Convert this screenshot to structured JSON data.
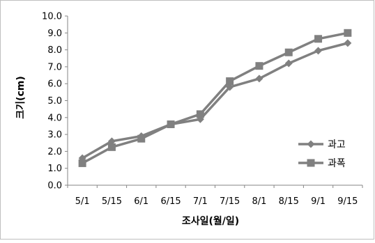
{
  "chart_data": {
    "type": "line",
    "categories": [
      "5/1",
      "5/15",
      "6/1",
      "6/15",
      "7/1",
      "7/15",
      "8/1",
      "8/15",
      "9/1",
      "9/15"
    ],
    "series": [
      {
        "name": "과고",
        "marker": "diamond",
        "color": "#808080",
        "values": [
          1.6,
          2.6,
          2.9,
          3.6,
          3.9,
          5.8,
          6.3,
          7.2,
          7.95,
          8.4
        ]
      },
      {
        "name": "과폭",
        "marker": "square",
        "color": "#808080",
        "values": [
          1.3,
          2.25,
          2.75,
          3.6,
          4.2,
          6.15,
          7.05,
          7.85,
          8.65,
          9.0
        ]
      }
    ],
    "ylim": [
      0,
      10
    ],
    "yticks": [
      "0.0",
      "1.0",
      "2.0",
      "3.0",
      "4.0",
      "5.0",
      "6.0",
      "7.0",
      "8.0",
      "9.0",
      "10.0"
    ],
    "xlabel": "조사일(월/일)",
    "ylabel": "크기(cm)",
    "legend_position": "right",
    "grid": false
  }
}
